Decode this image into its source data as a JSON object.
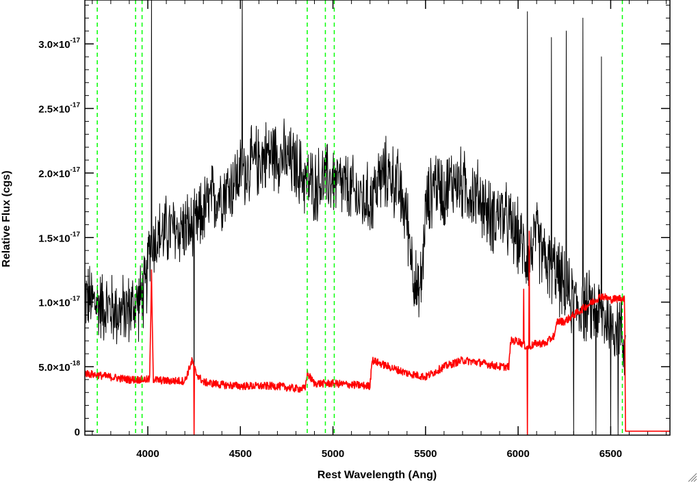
{
  "chart_data": {
    "type": "line",
    "xlabel": "Rest Wavelength (Ang)",
    "ylabel": "Relative Flux (cgs)",
    "xlim": [
      3660,
      6820
    ],
    "ylim": [
      -3e-19,
      3.34e-17
    ],
    "x_ticks": [
      {
        "value": 4000,
        "label": "4000"
      },
      {
        "value": 4500,
        "label": "4500"
      },
      {
        "value": 5000,
        "label": "5000"
      },
      {
        "value": 5500,
        "label": "5500"
      },
      {
        "value": 6000,
        "label": "6000"
      },
      {
        "value": 6500,
        "label": "6500"
      }
    ],
    "y_ticks": [
      {
        "value": 0,
        "mantissa": "0",
        "exp": ""
      },
      {
        "value": 5e-18,
        "mantissa": "5.0×10",
        "exp": "-18"
      },
      {
        "value": 1e-17,
        "mantissa": "1.0×10",
        "exp": "-17"
      },
      {
        "value": 1.5e-17,
        "mantissa": "1.5×10",
        "exp": "-17"
      },
      {
        "value": 2e-17,
        "mantissa": "2.0×10",
        "exp": "-17"
      },
      {
        "value": 2.5e-17,
        "mantissa": "2.5×10",
        "exp": "-17"
      },
      {
        "value": 3e-17,
        "mantissa": "3.0×10",
        "exp": "-17"
      }
    ],
    "x_minor_step": 100,
    "y_minor_step": 1e-18,
    "series": [
      {
        "color": "#000000",
        "noise": 2.4e-18,
        "x": [
          3660,
          3700,
          3750,
          3800,
          3850,
          3900,
          3950,
          3990,
          4010,
          4050,
          4100,
          4150,
          4200,
          4250,
          4300,
          4350,
          4400,
          4450,
          4500,
          4550,
          4600,
          4650,
          4700,
          4750,
          4800,
          4850,
          4900,
          4950,
          5000,
          5050,
          5100,
          5150,
          5200,
          5250,
          5300,
          5350,
          5400,
          5430,
          5460,
          5480,
          5500,
          5550,
          5600,
          5650,
          5700,
          5750,
          5800,
          5850,
          5900,
          5950,
          6000,
          6050,
          6100,
          6150,
          6200,
          6250,
          6300,
          6350,
          6400,
          6450,
          6500,
          6550,
          6570,
          6580
        ],
        "y": [
          1.05e-17,
          1e-17,
          9.8e-18,
          9.5e-18,
          9.2e-18,
          9.5e-18,
          1e-17,
          1.1e-17,
          1.45e-17,
          1.5e-17,
          1.55e-17,
          1.55e-17,
          1.58e-17,
          1.55e-17,
          1.7e-17,
          1.8e-17,
          1.85e-17,
          1.9e-17,
          2e-17,
          2.05e-17,
          2.1e-17,
          2.15e-17,
          2.15e-17,
          2.1e-17,
          2.05e-17,
          1.95e-17,
          1.9e-17,
          1.95e-17,
          1.95e-17,
          1.9e-17,
          1.85e-17,
          1.8e-17,
          1.78e-17,
          1.95e-17,
          2e-17,
          1.9e-17,
          1.65e-17,
          1.3e-17,
          1e-17,
          1.2e-17,
          1.7e-17,
          1.95e-17,
          1.85e-17,
          1.95e-17,
          1.9e-17,
          1.85e-17,
          1.8e-17,
          1.65e-17,
          1.7e-17,
          1.6e-17,
          1.5e-17,
          1.35e-17,
          1.5e-17,
          1.3e-17,
          1.25e-17,
          1.1e-17,
          1e-17,
          9.5e-18,
          9.5e-18,
          9e-18,
          8.5e-18,
          8e-18,
          7e-18,
          6e-18
        ],
        "spikes": [
          {
            "x": 4020,
            "y": 3.4e-17
          },
          {
            "x": 4510,
            "y": 3.4e-17
          },
          {
            "x": 4250,
            "y": 5e-19
          },
          {
            "x": 6050,
            "y": 3.25e-17
          },
          {
            "x": 6095,
            "y": 3.2e-17
          },
          {
            "x": 6180,
            "y": 3.05e-17
          },
          {
            "x": 6260,
            "y": 3.1e-17
          },
          {
            "x": 6300,
            "y": -3e-19
          },
          {
            "x": 6350,
            "y": 3.2e-17
          },
          {
            "x": 6375,
            "y": -3e-19
          },
          {
            "x": 6420,
            "y": -3e-19
          },
          {
            "x": 6450,
            "y": 2.9e-17
          },
          {
            "x": 6500,
            "y": -3e-19
          },
          {
            "x": 6540,
            "y": -3e-19
          }
        ]
      },
      {
        "color": "#ff0000",
        "noise": 3e-19,
        "x": [
          3660,
          3700,
          3800,
          3900,
          3990,
          4010,
          4020,
          4030,
          4100,
          4200,
          4240,
          4260,
          4300,
          4400,
          4500,
          4600,
          4700,
          4800,
          4850,
          4860,
          4900,
          5000,
          5100,
          5200,
          5210,
          5300,
          5400,
          5500,
          5600,
          5700,
          5800,
          5900,
          5950,
          5960,
          6000,
          6050,
          6100,
          6150,
          6200,
          6210,
          6250,
          6300,
          6350,
          6400,
          6450,
          6500,
          6550,
          6575,
          6580,
          6820
        ],
        "y": [
          4.5e-18,
          4.4e-18,
          4.2e-18,
          4e-18,
          4e-18,
          4e-18,
          1.2e-17,
          4e-18,
          3.9e-18,
          3.9e-18,
          5.5e-18,
          4.5e-18,
          3.8e-18,
          3.6e-18,
          3.5e-18,
          3.5e-18,
          3.5e-18,
          3.3e-18,
          3.3e-18,
          4.5e-18,
          3.7e-18,
          3.7e-18,
          3.6e-18,
          3.5e-18,
          5.5e-18,
          5e-18,
          4.5e-18,
          4.2e-18,
          5e-18,
          5.5e-18,
          5.3e-18,
          5e-18,
          5e-18,
          7e-18,
          7e-18,
          6.5e-18,
          6.8e-18,
          6.8e-18,
          7.5e-18,
          8.5e-18,
          8.5e-18,
          9e-18,
          9.5e-18,
          1e-17,
          1.05e-17,
          1.02e-17,
          1.03e-17,
          1.03e-17,
          0.0,
          0.0
        ],
        "spikes": [
          {
            "x": 4250,
            "y": -3e-19
          },
          {
            "x": 4020,
            "y": 1.25e-17
          },
          {
            "x": 6050,
            "y": -3e-19
          },
          {
            "x": 6060,
            "y": 1.55e-17
          },
          {
            "x": 6030,
            "y": 1.1e-17
          },
          {
            "x": 6405,
            "y": 1.25e-17
          }
        ]
      }
    ],
    "vlines": [
      {
        "x": 3727,
        "color": "#00ff00"
      },
      {
        "x": 3934,
        "color": "#00ff00"
      },
      {
        "x": 3969,
        "color": "#00ff00"
      },
      {
        "x": 4861,
        "color": "#00ff00"
      },
      {
        "x": 4959,
        "color": "#00ff00"
      },
      {
        "x": 5007,
        "color": "#00ff00"
      },
      {
        "x": 6563,
        "color": "#00ff00"
      }
    ]
  }
}
